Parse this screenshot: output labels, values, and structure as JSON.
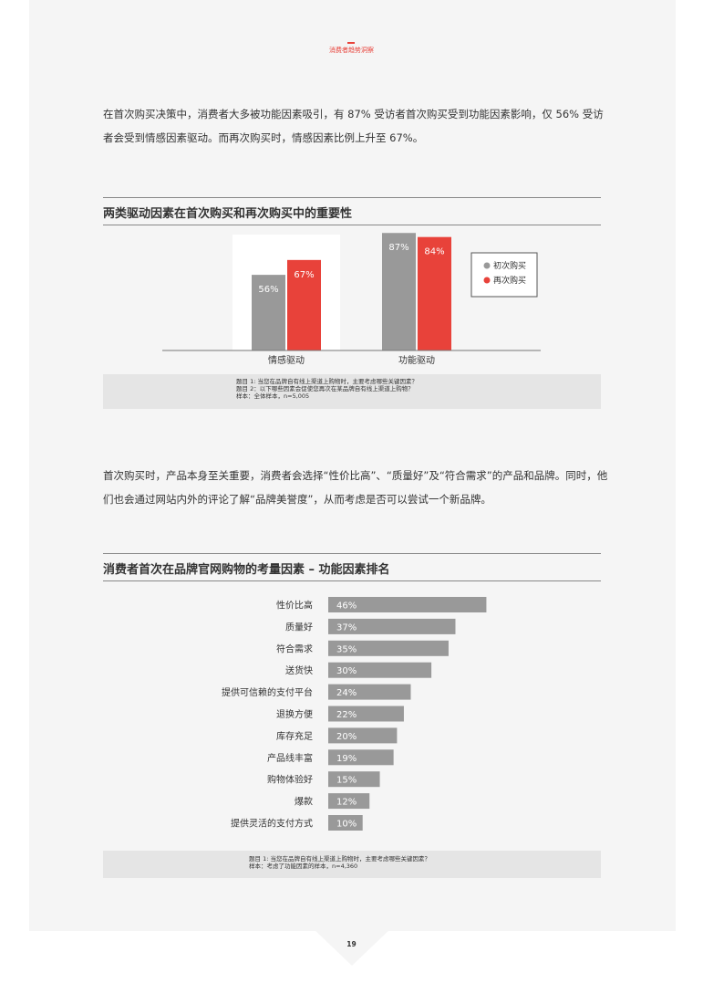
{
  "header": {
    "label": "消费者趋势洞察"
  },
  "intro_paragraph": "在首次购买决策中，消费者大多被功能因素吸引，有 87% 受访者首次购买受到功能因素影响，仅 56% 受访者会受到情感因素驱动。而再次购买时，情感因素比例上升至 67%。",
  "mid_paragraph": "首次购买时，产品本身至关重要，消费者会选择“性价比高”、“质量好”及“符合需求”的产品和品牌。同时，他们也会通过网站内外的评论了解“品牌美誉度”，从而考虑是否可以尝试一个新品牌。",
  "chart1": {
    "title": "两类驱动因素在首次购买和再次购买中的重要性",
    "notes": [
      "题目 1: 当您在品牌自有线上渠道上购物时，主要考虑哪些关键因素？",
      "题目 2：以下哪些因素会促使您再次在某品牌自有线上渠道上购物？",
      "样本：全体样本，n=5,005"
    ]
  },
  "chart2": {
    "title": "消费者首次在品牌官网购物的考量因素 – 功能因素排名",
    "notes": [
      "题目 1: 当您在品牌自有线上渠道上购物时，主要考虑哪些关键因素？",
      "样本：考虑了功能因素的样本，n=4,360"
    ]
  },
  "page_number": "19",
  "colors": {
    "accent": "#e8423a",
    "gray_bar": "#999999",
    "panel": "#f5f5f5",
    "note_bg": "#e5e5e5"
  },
  "chart_data": [
    {
      "type": "bar",
      "categories": [
        "情感驱动",
        "功能驱动"
      ],
      "series": [
        {
          "name": "初次购买",
          "values": [
            56,
            87
          ],
          "labels": [
            "56%",
            "87%"
          ],
          "color": "#999999"
        },
        {
          "name": "再次购买",
          "values": [
            67,
            84
          ],
          "labels": [
            "67%",
            "84%"
          ],
          "color": "#e8423a"
        }
      ],
      "ylim": [
        0,
        100
      ],
      "legend": "right",
      "highlight_category": "情感驱动"
    },
    {
      "type": "bar",
      "orientation": "horizontal",
      "categories": [
        "性价比高",
        "质量好",
        "符合需求",
        "送货快",
        "提供可信赖的支付平台",
        "退换方便",
        "库存充足",
        "产品线丰富",
        "购物体验好",
        "爆款",
        "提供灵活的支付方式"
      ],
      "values": [
        46,
        37,
        35,
        30,
        24,
        22,
        20,
        19,
        15,
        12,
        10
      ],
      "labels": [
        "46%",
        "37%",
        "35%",
        "30%",
        "24%",
        "22%",
        "20%",
        "19%",
        "15%",
        "12%",
        "10%"
      ],
      "color": "#999999",
      "xlim": [
        0,
        100
      ]
    }
  ]
}
